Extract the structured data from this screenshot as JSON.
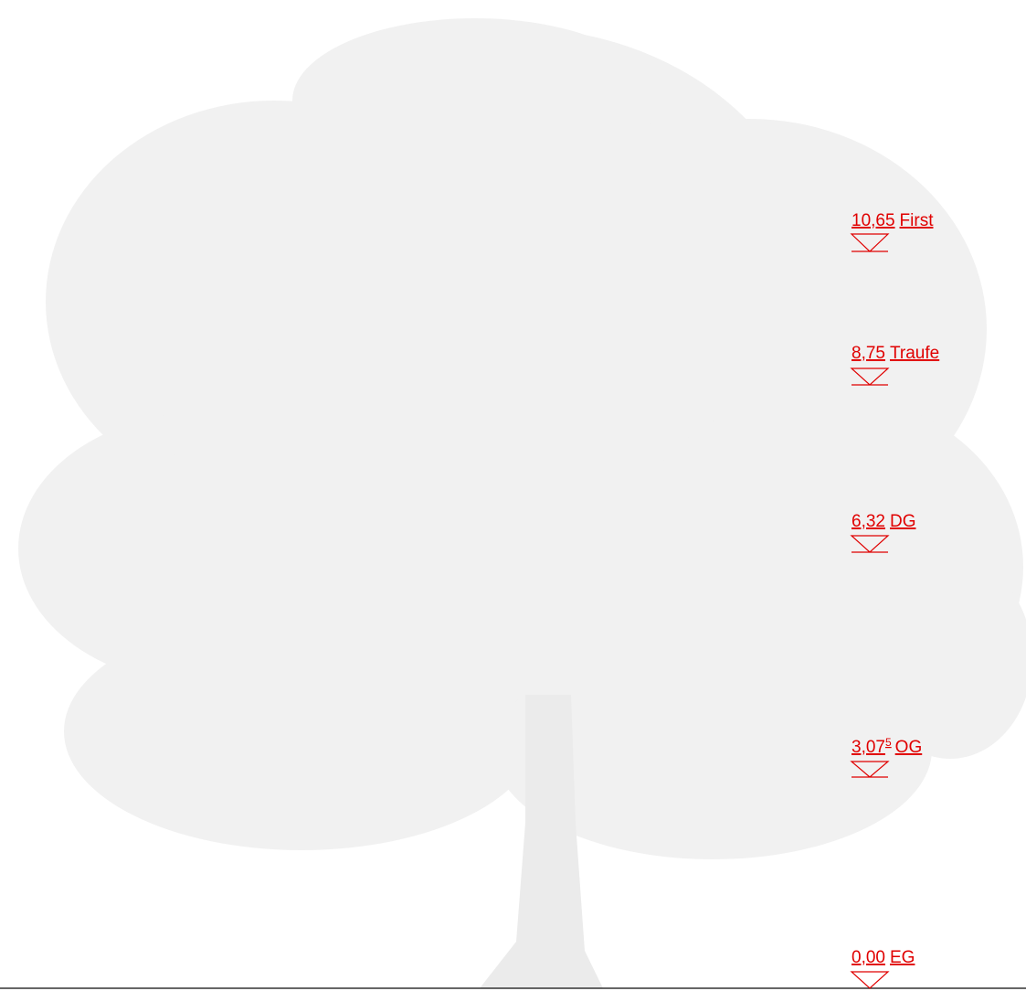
{
  "levels": [
    {
      "elevation": "10,65",
      "name": "First"
    },
    {
      "elevation": "8,75",
      "name": "Traufe"
    },
    {
      "elevation": "6,32",
      "name": "DG"
    },
    {
      "elevation": "3,07",
      "superscript": "5",
      "name": "OG"
    },
    {
      "elevation": "0,00",
      "name": "EG"
    }
  ]
}
